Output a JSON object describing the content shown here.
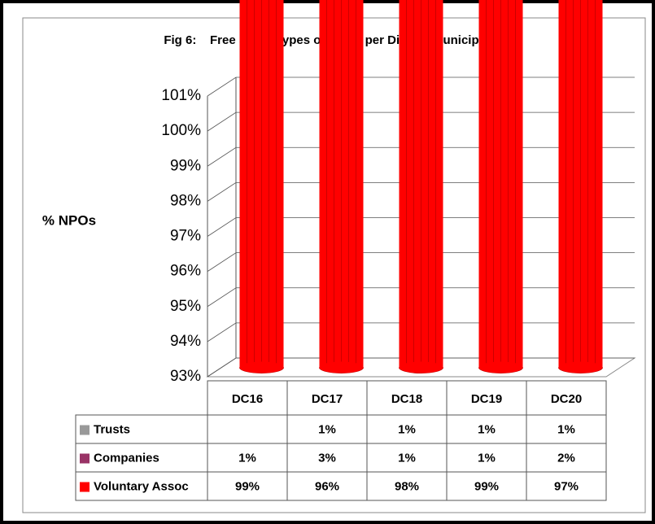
{
  "chart_data": {
    "type": "stacked_bar_3d",
    "title": "Fig 6:    Free State  Types of NPOs per District Municipality",
    "y_label": "% NPOs",
    "categories": [
      "DC16",
      "DC17",
      "DC18",
      "DC19",
      "DC20"
    ],
    "series": [
      {
        "name": "Voluntary Assoc",
        "color": "#ff0000",
        "values": [
          99,
          96,
          98,
          99,
          97
        ],
        "value_labels": [
          "99%",
          "96%",
          "98%",
          "99%",
          "97%"
        ]
      },
      {
        "name": "Companies",
        "color": "#993366",
        "values": [
          1,
          3,
          1,
          1,
          2
        ],
        "value_labels": [
          "1%",
          "3%",
          "1%",
          "1%",
          "2%"
        ]
      },
      {
        "name": "Trusts",
        "color": "#999999",
        "values": [
          null,
          1,
          1,
          1,
          1
        ],
        "value_labels": [
          null,
          "1%",
          "1%",
          "1%",
          "1%"
        ]
      }
    ],
    "ylim": [
      93,
      101
    ],
    "yticks": [
      {
        "value": 93,
        "label": "93%"
      },
      {
        "value": 94,
        "label": "94%"
      },
      {
        "value": 95,
        "label": "95%"
      },
      {
        "value": 96,
        "label": "96%"
      },
      {
        "value": 97,
        "label": "97%"
      },
      {
        "value": 98,
        "label": "98%"
      },
      {
        "value": 99,
        "label": "99%"
      },
      {
        "value": 100,
        "label": "100%"
      },
      {
        "value": 101,
        "label": "101%"
      }
    ],
    "grid": true
  }
}
